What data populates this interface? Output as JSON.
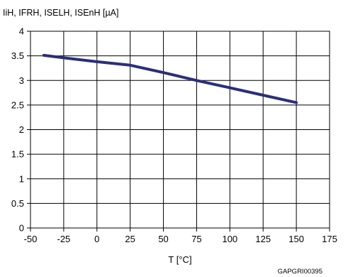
{
  "chart_data": {
    "type": "line",
    "ylabel": "IiH, IFRH, ISELH, ISEnH [µA]",
    "xlabel": "T [°C]",
    "annotation": "GAPGRI00395",
    "xlim": [
      -50,
      175
    ],
    "ylim": [
      0,
      4
    ],
    "x_ticks": [
      -50,
      -25,
      0,
      25,
      50,
      75,
      100,
      125,
      150,
      175
    ],
    "y_ticks": [
      0,
      0.5,
      1,
      1.5,
      2,
      2.5,
      3,
      3.5,
      4
    ],
    "x_tick_labels": [
      "-50",
      "-25",
      "0",
      "25",
      "50",
      "75",
      "100",
      "125",
      "150",
      "175"
    ],
    "y_tick_labels": [
      "0",
      "0.5",
      "1",
      "1.5",
      "2",
      "2.5",
      "3",
      "3.5",
      "4"
    ],
    "grid": true,
    "series": [
      {
        "color": "#2a2e7a",
        "x": [
          -40,
          -25,
          0,
          25,
          50,
          75,
          100,
          125,
          150
        ],
        "y": [
          3.51,
          3.46,
          3.38,
          3.31,
          3.16,
          3.0,
          2.85,
          2.7,
          2.55
        ]
      }
    ]
  }
}
